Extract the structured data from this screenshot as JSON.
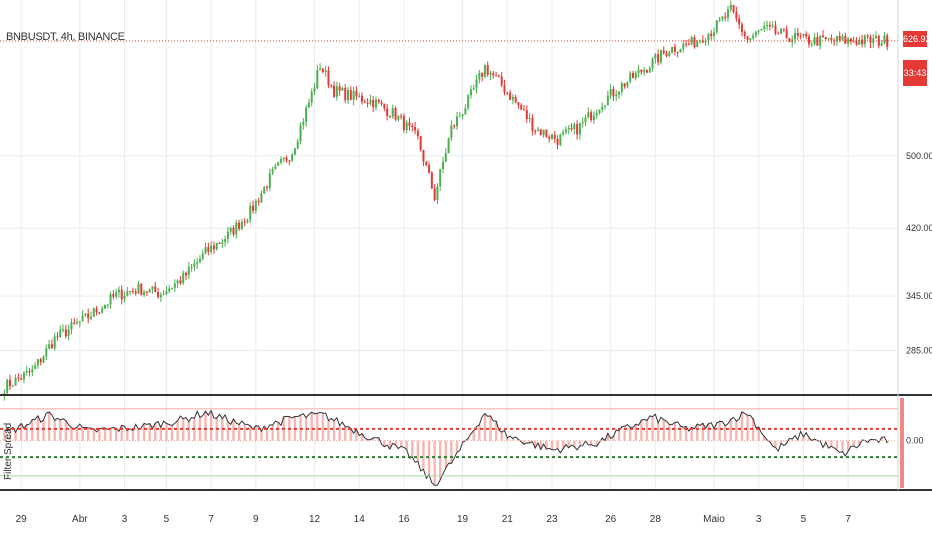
{
  "header": {
    "symbol_text": "BNBUSDT, 4h, BINANCE"
  },
  "indicator": {
    "label": "Filter Spread",
    "zero_label": "0.00"
  },
  "price_axis": {
    "last_price_tag": "626.92",
    "countdown_tag": "33:43"
  },
  "colors": {
    "bull": "#4caf50",
    "bear": "#e53935",
    "grid": "#e8edf2",
    "last_price_line": "#e53935",
    "histogram": "#f4a9a4",
    "indicator_line": "#333333",
    "upper_band": "#e53935",
    "lower_band": "#2e7d32"
  },
  "chart_data": [
    {
      "type": "candlestick",
      "title": "",
      "y_ticks": [
        {
          "value": 500,
          "label": "500.00"
        },
        {
          "value": 420,
          "label": "420.00"
        },
        {
          "value": 345,
          "label": "345.00"
        },
        {
          "value": 285,
          "label": "285.00"
        }
      ],
      "ylim": [
        238,
        672
      ],
      "last_price": 626.92,
      "close_path": [
        {
          "i": 0,
          "v": 245
        },
        {
          "i": 10,
          "v": 262
        },
        {
          "i": 18,
          "v": 298
        },
        {
          "i": 30,
          "v": 322
        },
        {
          "i": 40,
          "v": 346
        },
        {
          "i": 48,
          "v": 353
        },
        {
          "i": 56,
          "v": 348
        },
        {
          "i": 64,
          "v": 365
        },
        {
          "i": 72,
          "v": 393
        },
        {
          "i": 80,
          "v": 412
        },
        {
          "i": 88,
          "v": 438
        },
        {
          "i": 96,
          "v": 480
        },
        {
          "i": 103,
          "v": 505
        },
        {
          "i": 110,
          "v": 568
        },
        {
          "i": 113,
          "v": 600
        },
        {
          "i": 118,
          "v": 572
        },
        {
          "i": 124,
          "v": 566
        },
        {
          "i": 132,
          "v": 560
        },
        {
          "i": 140,
          "v": 545
        },
        {
          "i": 148,
          "v": 518
        },
        {
          "i": 154,
          "v": 455
        },
        {
          "i": 160,
          "v": 530
        },
        {
          "i": 166,
          "v": 560
        },
        {
          "i": 172,
          "v": 598
        },
        {
          "i": 178,
          "v": 578
        },
        {
          "i": 184,
          "v": 555
        },
        {
          "i": 190,
          "v": 530
        },
        {
          "i": 198,
          "v": 518
        },
        {
          "i": 206,
          "v": 532
        },
        {
          "i": 214,
          "v": 560
        },
        {
          "i": 222,
          "v": 580
        },
        {
          "i": 230,
          "v": 598
        },
        {
          "i": 238,
          "v": 618
        },
        {
          "i": 246,
          "v": 624
        },
        {
          "i": 254,
          "v": 640
        },
        {
          "i": 260,
          "v": 660
        },
        {
          "i": 266,
          "v": 628
        },
        {
          "i": 272,
          "v": 640
        },
        {
          "i": 280,
          "v": 632
        },
        {
          "i": 288,
          "v": 627
        }
      ],
      "date_ticks": [
        {
          "i": 6,
          "label": "29"
        },
        {
          "i": 27,
          "label": "Abr"
        },
        {
          "i": 43,
          "label": "3"
        },
        {
          "i": 58,
          "label": "5"
        },
        {
          "i": 74,
          "label": "7"
        },
        {
          "i": 90,
          "label": "9"
        },
        {
          "i": 111,
          "label": "12"
        },
        {
          "i": 127,
          "label": "14"
        },
        {
          "i": 143,
          "label": "16"
        },
        {
          "i": 164,
          "label": "19"
        },
        {
          "i": 180,
          "label": "21"
        },
        {
          "i": 196,
          "label": "23"
        },
        {
          "i": 217,
          "label": "26"
        },
        {
          "i": 233,
          "label": "28"
        },
        {
          "i": 254,
          "label": "Maio"
        },
        {
          "i": 270,
          "label": "3"
        },
        {
          "i": 286,
          "label": "5"
        },
        {
          "i": 302,
          "label": "7"
        }
      ],
      "bar_count": 320
    },
    {
      "type": "line",
      "title": "",
      "series_line_path": [
        {
          "i": 0,
          "v": 0.3
        },
        {
          "i": 16,
          "v": 1.1
        },
        {
          "i": 30,
          "v": 0.4
        },
        {
          "i": 50,
          "v": 0.6
        },
        {
          "i": 64,
          "v": 0.9
        },
        {
          "i": 72,
          "v": 1.2
        },
        {
          "i": 90,
          "v": 0.5
        },
        {
          "i": 104,
          "v": 1.0
        },
        {
          "i": 114,
          "v": 1.1
        },
        {
          "i": 130,
          "v": 0.2
        },
        {
          "i": 144,
          "v": -0.5
        },
        {
          "i": 154,
          "v": -1.9
        },
        {
          "i": 162,
          "v": -0.6
        },
        {
          "i": 172,
          "v": 1.2
        },
        {
          "i": 180,
          "v": 0.2
        },
        {
          "i": 196,
          "v": -0.4
        },
        {
          "i": 212,
          "v": -0.1
        },
        {
          "i": 222,
          "v": 0.5
        },
        {
          "i": 232,
          "v": 1.0
        },
        {
          "i": 244,
          "v": 0.5
        },
        {
          "i": 256,
          "v": 0.7
        },
        {
          "i": 266,
          "v": 1.2
        },
        {
          "i": 276,
          "v": -0.4
        },
        {
          "i": 286,
          "v": 0.3
        },
        {
          "i": 300,
          "v": -0.6
        },
        {
          "i": 308,
          "v": 0.0
        }
      ],
      "upper_band": 0.5,
      "lower_band": -0.7,
      "ylim": [
        -2.1,
        1.9
      ]
    }
  ]
}
